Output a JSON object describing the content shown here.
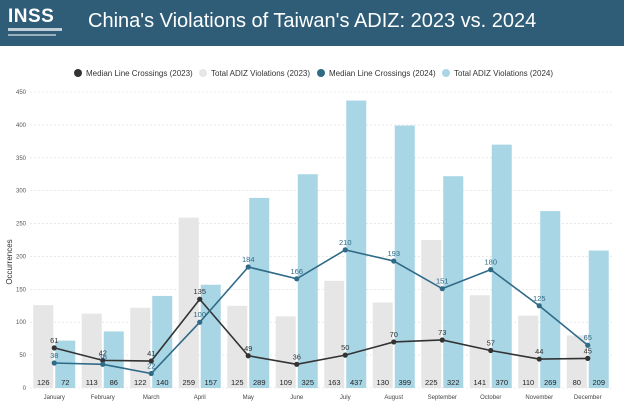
{
  "header": {
    "logo_text": "INSS",
    "title": "China's Violations of Taiwan's ADIZ: 2023 vs. 2024"
  },
  "colors": {
    "header_bg": "#2f5d78",
    "bar_2023": "#e6e6e6",
    "bar_2024": "#a9d6e5",
    "line_2023": "#333333",
    "line_2024": "#2f6a87"
  },
  "chart_data": {
    "type": "bar",
    "title": "",
    "xlabel": "",
    "ylabel": "Occurrences",
    "ylim": [
      0,
      450
    ],
    "yticks": [
      0,
      50,
      100,
      150,
      200,
      250,
      300,
      350,
      400,
      450
    ],
    "grid": true,
    "legend_position": "top",
    "categories": [
      "January",
      "February",
      "March",
      "April",
      "May",
      "June",
      "July",
      "August",
      "September",
      "October",
      "November",
      "December"
    ],
    "series": [
      {
        "name": "Median Line Crossings (2023)",
        "kind": "line",
        "values": [
          61,
          42,
          41,
          135,
          49,
          36,
          50,
          70,
          73,
          57,
          44,
          45
        ]
      },
      {
        "name": "Total ADIZ Violations (2023)",
        "kind": "bar",
        "values": [
          126,
          113,
          122,
          259,
          125,
          109,
          163,
          130,
          225,
          141,
          110,
          80
        ]
      },
      {
        "name": "Median Line Crossings (2024)",
        "kind": "line",
        "values": [
          38,
          36,
          22,
          100,
          184,
          166,
          210,
          193,
          151,
          180,
          125,
          65
        ]
      },
      {
        "name": "Total ADIZ Violations (2024)",
        "kind": "bar",
        "values": [
          72,
          86,
          140,
          157,
          289,
          325,
          437,
          399,
          322,
          370,
          269,
          209
        ]
      }
    ]
  }
}
